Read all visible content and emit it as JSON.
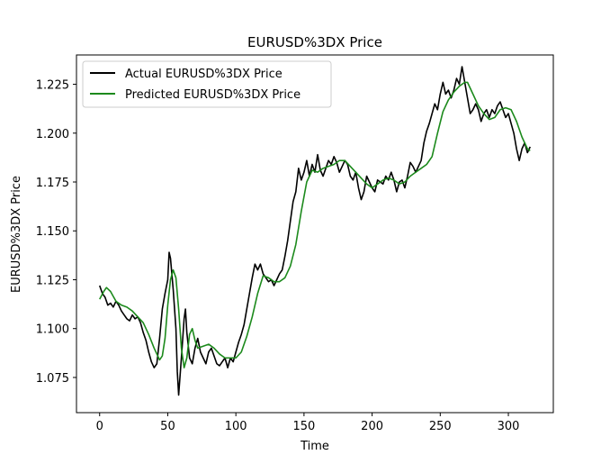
{
  "chart_data": {
    "type": "line",
    "title": "EURUSD%3DX Price",
    "xlabel": "Time",
    "ylabel": "EURUSD%3DX Price",
    "xlim": [
      -17,
      333
    ],
    "ylim": [
      1.057,
      1.24
    ],
    "x_ticks": [
      0,
      50,
      100,
      150,
      200,
      250,
      300
    ],
    "y_ticks": [
      1.075,
      1.1,
      1.125,
      1.15,
      1.175,
      1.2,
      1.225
    ],
    "x_tick_labels": [
      "0",
      "50",
      "100",
      "150",
      "200",
      "250",
      "300"
    ],
    "y_tick_labels": [
      "1.075",
      "1.100",
      "1.125",
      "1.150",
      "1.175",
      "1.200",
      "1.225"
    ],
    "grid": false,
    "legend_position": "top-left",
    "series": [
      {
        "name": "Actual EURUSD%3DX Price",
        "color": "#000000",
        "points": [
          [
            0,
            1.122
          ],
          [
            2,
            1.118
          ],
          [
            4,
            1.116
          ],
          [
            6,
            1.112
          ],
          [
            8,
            1.113
          ],
          [
            10,
            1.111
          ],
          [
            12,
            1.114
          ],
          [
            14,
            1.112
          ],
          [
            16,
            1.109
          ],
          [
            18,
            1.107
          ],
          [
            20,
            1.105
          ],
          [
            22,
            1.104
          ],
          [
            24,
            1.107
          ],
          [
            26,
            1.105
          ],
          [
            28,
            1.106
          ],
          [
            30,
            1.103
          ],
          [
            32,
            1.098
          ],
          [
            34,
            1.094
          ],
          [
            36,
            1.088
          ],
          [
            38,
            1.083
          ],
          [
            40,
            1.08
          ],
          [
            42,
            1.082
          ],
          [
            44,
            1.095
          ],
          [
            46,
            1.11
          ],
          [
            48,
            1.118
          ],
          [
            50,
            1.125
          ],
          [
            51,
            1.139
          ],
          [
            52,
            1.136
          ],
          [
            54,
            1.12
          ],
          [
            56,
            1.1
          ],
          [
            57,
            1.078
          ],
          [
            58,
            1.066
          ],
          [
            60,
            1.085
          ],
          [
            62,
            1.105
          ],
          [
            63,
            1.11
          ],
          [
            64,
            1.098
          ],
          [
            66,
            1.085
          ],
          [
            68,
            1.082
          ],
          [
            70,
            1.09
          ],
          [
            72,
            1.095
          ],
          [
            74,
            1.088
          ],
          [
            76,
            1.085
          ],
          [
            78,
            1.082
          ],
          [
            80,
            1.088
          ],
          [
            82,
            1.09
          ],
          [
            84,
            1.086
          ],
          [
            86,
            1.082
          ],
          [
            88,
            1.081
          ],
          [
            90,
            1.083
          ],
          [
            92,
            1.085
          ],
          [
            94,
            1.08
          ],
          [
            96,
            1.085
          ],
          [
            98,
            1.083
          ],
          [
            100,
            1.088
          ],
          [
            102,
            1.093
          ],
          [
            104,
            1.097
          ],
          [
            106,
            1.102
          ],
          [
            108,
            1.11
          ],
          [
            110,
            1.118
          ],
          [
            112,
            1.126
          ],
          [
            114,
            1.133
          ],
          [
            116,
            1.13
          ],
          [
            118,
            1.133
          ],
          [
            120,
            1.128
          ],
          [
            122,
            1.126
          ],
          [
            124,
            1.124
          ],
          [
            126,
            1.125
          ],
          [
            128,
            1.122
          ],
          [
            130,
            1.125
          ],
          [
            132,
            1.128
          ],
          [
            134,
            1.13
          ],
          [
            136,
            1.137
          ],
          [
            138,
            1.145
          ],
          [
            140,
            1.155
          ],
          [
            142,
            1.165
          ],
          [
            144,
            1.17
          ],
          [
            146,
            1.182
          ],
          [
            148,
            1.176
          ],
          [
            150,
            1.18
          ],
          [
            152,
            1.186
          ],
          [
            154,
            1.178
          ],
          [
            156,
            1.184
          ],
          [
            158,
            1.18
          ],
          [
            160,
            1.189
          ],
          [
            162,
            1.181
          ],
          [
            164,
            1.178
          ],
          [
            166,
            1.182
          ],
          [
            168,
            1.186
          ],
          [
            170,
            1.184
          ],
          [
            172,
            1.188
          ],
          [
            174,
            1.185
          ],
          [
            176,
            1.18
          ],
          [
            178,
            1.183
          ],
          [
            180,
            1.186
          ],
          [
            182,
            1.184
          ],
          [
            184,
            1.178
          ],
          [
            186,
            1.176
          ],
          [
            188,
            1.18
          ],
          [
            190,
            1.172
          ],
          [
            192,
            1.166
          ],
          [
            194,
            1.17
          ],
          [
            196,
            1.178
          ],
          [
            198,
            1.175
          ],
          [
            200,
            1.172
          ],
          [
            202,
            1.17
          ],
          [
            204,
            1.176
          ],
          [
            206,
            1.175
          ],
          [
            208,
            1.174
          ],
          [
            210,
            1.178
          ],
          [
            212,
            1.176
          ],
          [
            214,
            1.18
          ],
          [
            216,
            1.176
          ],
          [
            218,
            1.17
          ],
          [
            220,
            1.175
          ],
          [
            222,
            1.176
          ],
          [
            224,
            1.172
          ],
          [
            226,
            1.178
          ],
          [
            228,
            1.185
          ],
          [
            230,
            1.183
          ],
          [
            232,
            1.18
          ],
          [
            234,
            1.183
          ],
          [
            236,
            1.186
          ],
          [
            238,
            1.195
          ],
          [
            240,
            1.201
          ],
          [
            242,
            1.205
          ],
          [
            244,
            1.21
          ],
          [
            246,
            1.215
          ],
          [
            248,
            1.212
          ],
          [
            250,
            1.22
          ],
          [
            252,
            1.226
          ],
          [
            254,
            1.22
          ],
          [
            256,
            1.222
          ],
          [
            258,
            1.218
          ],
          [
            260,
            1.222
          ],
          [
            262,
            1.228
          ],
          [
            264,
            1.225
          ],
          [
            266,
            1.234
          ],
          [
            268,
            1.226
          ],
          [
            270,
            1.218
          ],
          [
            272,
            1.21
          ],
          [
            274,
            1.212
          ],
          [
            276,
            1.215
          ],
          [
            278,
            1.212
          ],
          [
            280,
            1.206
          ],
          [
            282,
            1.21
          ],
          [
            284,
            1.212
          ],
          [
            286,
            1.208
          ],
          [
            288,
            1.212
          ],
          [
            290,
            1.21
          ],
          [
            292,
            1.214
          ],
          [
            294,
            1.216
          ],
          [
            296,
            1.212
          ],
          [
            298,
            1.208
          ],
          [
            300,
            1.21
          ],
          [
            302,
            1.205
          ],
          [
            304,
            1.2
          ],
          [
            306,
            1.192
          ],
          [
            308,
            1.186
          ],
          [
            310,
            1.192
          ],
          [
            312,
            1.195
          ],
          [
            314,
            1.19
          ],
          [
            316,
            1.193
          ]
        ]
      },
      {
        "name": "Predicted EURUSD%3DX Price",
        "color": "#1c8a1c",
        "points": [
          [
            0,
            1.115
          ],
          [
            3,
            1.119
          ],
          [
            5,
            1.121
          ],
          [
            8,
            1.119
          ],
          [
            12,
            1.114
          ],
          [
            16,
            1.112
          ],
          [
            20,
            1.111
          ],
          [
            24,
            1.109
          ],
          [
            28,
            1.106
          ],
          [
            32,
            1.103
          ],
          [
            36,
            1.097
          ],
          [
            40,
            1.09
          ],
          [
            44,
            1.084
          ],
          [
            46,
            1.086
          ],
          [
            48,
            1.095
          ],
          [
            50,
            1.112
          ],
          [
            52,
            1.125
          ],
          [
            54,
            1.13
          ],
          [
            56,
            1.126
          ],
          [
            58,
            1.11
          ],
          [
            60,
            1.09
          ],
          [
            62,
            1.08
          ],
          [
            64,
            1.085
          ],
          [
            66,
            1.097
          ],
          [
            68,
            1.1
          ],
          [
            70,
            1.094
          ],
          [
            72,
            1.09
          ],
          [
            76,
            1.091
          ],
          [
            80,
            1.092
          ],
          [
            84,
            1.09
          ],
          [
            88,
            1.087
          ],
          [
            92,
            1.085
          ],
          [
            96,
            1.085
          ],
          [
            100,
            1.085
          ],
          [
            104,
            1.088
          ],
          [
            108,
            1.096
          ],
          [
            112,
            1.106
          ],
          [
            116,
            1.118
          ],
          [
            120,
            1.127
          ],
          [
            124,
            1.126
          ],
          [
            128,
            1.124
          ],
          [
            132,
            1.124
          ],
          [
            136,
            1.126
          ],
          [
            140,
            1.132
          ],
          [
            144,
            1.143
          ],
          [
            148,
            1.16
          ],
          [
            152,
            1.175
          ],
          [
            156,
            1.181
          ],
          [
            160,
            1.18
          ],
          [
            164,
            1.182
          ],
          [
            168,
            1.183
          ],
          [
            172,
            1.184
          ],
          [
            176,
            1.186
          ],
          [
            180,
            1.186
          ],
          [
            184,
            1.183
          ],
          [
            188,
            1.18
          ],
          [
            192,
            1.177
          ],
          [
            196,
            1.174
          ],
          [
            200,
            1.172
          ],
          [
            204,
            1.174
          ],
          [
            208,
            1.176
          ],
          [
            212,
            1.177
          ],
          [
            216,
            1.176
          ],
          [
            220,
            1.174
          ],
          [
            224,
            1.175
          ],
          [
            228,
            1.178
          ],
          [
            232,
            1.18
          ],
          [
            236,
            1.182
          ],
          [
            240,
            1.184
          ],
          [
            244,
            1.188
          ],
          [
            248,
            1.2
          ],
          [
            252,
            1.211
          ],
          [
            256,
            1.217
          ],
          [
            260,
            1.221
          ],
          [
            264,
            1.224
          ],
          [
            268,
            1.226
          ],
          [
            270,
            1.226
          ],
          [
            274,
            1.22
          ],
          [
            278,
            1.214
          ],
          [
            282,
            1.21
          ],
          [
            286,
            1.207
          ],
          [
            290,
            1.208
          ],
          [
            294,
            1.212
          ],
          [
            298,
            1.213
          ],
          [
            302,
            1.212
          ],
          [
            306,
            1.206
          ],
          [
            310,
            1.198
          ],
          [
            314,
            1.192
          ],
          [
            316,
            1.191
          ]
        ]
      }
    ]
  }
}
